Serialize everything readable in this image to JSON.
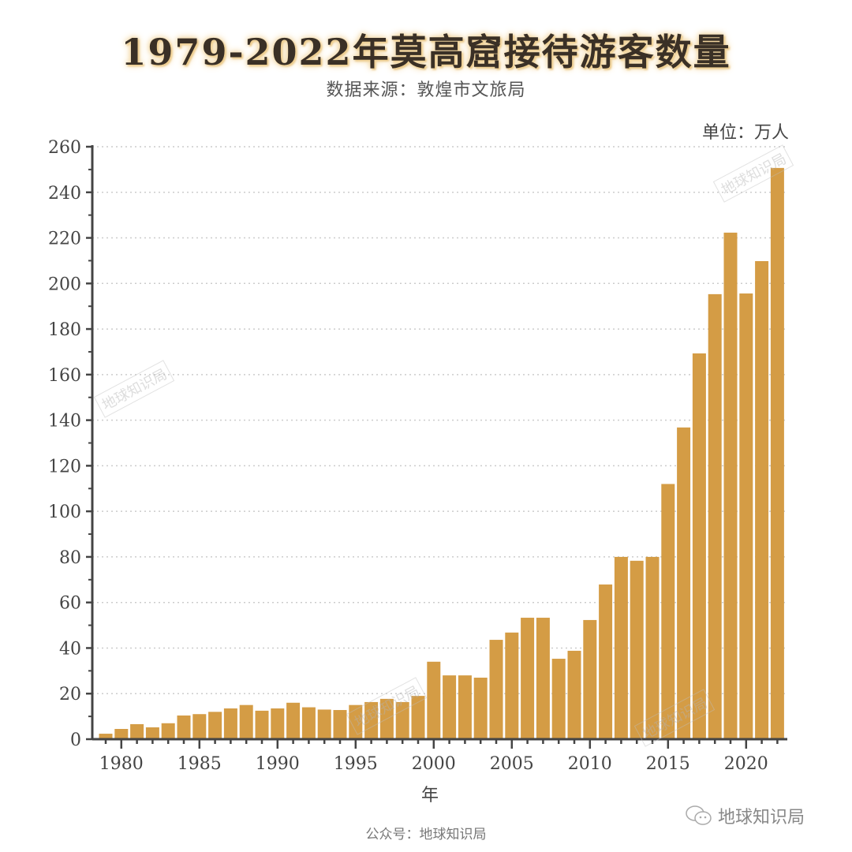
{
  "chart_data": {
    "type": "bar",
    "title": "1979-2022年莫高窟接待游客数量",
    "subtitle": "数据来源：敦煌市文旅局",
    "unit": "单位：万人",
    "xlabel": "年",
    "ylabel": "",
    "ylim": [
      0,
      260
    ],
    "yticks": [
      0,
      20,
      40,
      60,
      80,
      100,
      120,
      140,
      160,
      180,
      200,
      220,
      240,
      260
    ],
    "xticks": [
      1980,
      1985,
      1990,
      1995,
      2000,
      2005,
      2010,
      2015,
      2020
    ],
    "grid": "horizontal dotted",
    "bar_color": "#d49c45",
    "categories": [
      1979,
      1980,
      1981,
      1982,
      1983,
      1984,
      1985,
      1986,
      1987,
      1988,
      1989,
      1990,
      1991,
      1992,
      1993,
      1994,
      1995,
      1996,
      1997,
      1998,
      1999,
      2000,
      2001,
      2002,
      2003,
      2004,
      2005,
      2006,
      2007,
      2008,
      2009,
      2010,
      2011,
      2012,
      2013,
      2014,
      2015,
      2016,
      2017,
      2018,
      2019,
      2020,
      2021,
      2022
    ],
    "values": [
      2.4,
      4.5,
      6.6,
      5.2,
      7,
      10.4,
      11,
      12,
      13.5,
      15,
      12.5,
      13.5,
      16,
      14,
      13,
      12.8,
      15,
      16.3,
      17.7,
      16.3,
      19,
      34,
      28,
      28,
      27,
      43.6,
      46.8,
      53.3,
      53.3,
      35.3,
      38.8,
      52.3,
      67.9,
      80,
      78.3,
      80,
      112,
      136.8,
      169.3,
      195.3,
      222.3,
      195.6,
      209.8,
      250.7
    ]
  },
  "watermark": "地球知识局",
  "footer": "公众号：地球知识局",
  "brand": {
    "icon": "wechat-icon",
    "label": "地球知识局"
  }
}
